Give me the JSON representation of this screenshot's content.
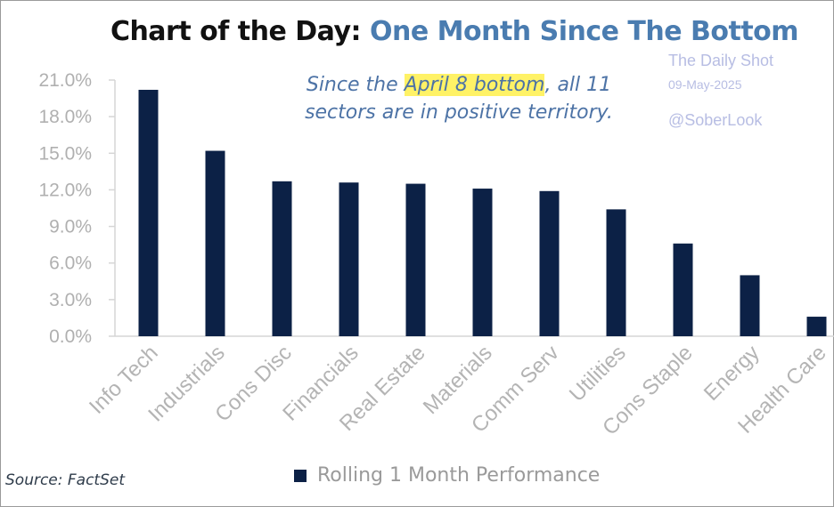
{
  "title": {
    "left": "Chart of the Day:",
    "right": "One Month Since The Bottom"
  },
  "watermark": {
    "name": "The Daily Shot",
    "date": "09-May-2025",
    "handle": "@SoberLook"
  },
  "annotation": {
    "pre": "Since the ",
    "highlight": "April 8 bottom",
    "post": ", all 11 sectors are in positive territory."
  },
  "source": "Source: FactSet",
  "colors": {
    "bar": "#0c2146",
    "title_accent": "#4a7cb0",
    "annotation": "#4d73a6",
    "highlight": "#fff266"
  },
  "chart_data": {
    "type": "bar",
    "categories": [
      "Info Tech",
      "Industrials",
      "Cons Disc",
      "Financials",
      "Real Estate",
      "Materials",
      "Comm Serv",
      "Utilities",
      "Cons Staple",
      "Energy",
      "Health Care"
    ],
    "series": [
      {
        "name": "Rolling 1 Month Performance",
        "values": [
          20.2,
          15.2,
          12.7,
          12.6,
          12.5,
          12.1,
          11.9,
          10.4,
          7.6,
          5.0,
          1.6
        ]
      }
    ],
    "ylim": [
      0,
      21
    ],
    "y_ticks": [
      "0.0%",
      "3.0%",
      "6.0%",
      "9.0%",
      "12.0%",
      "15.0%",
      "18.0%",
      "21.0%"
    ],
    "y_tick_values": [
      0,
      3,
      6,
      9,
      12,
      15,
      18,
      21
    ],
    "legend_position": "bottom",
    "grid": false
  }
}
